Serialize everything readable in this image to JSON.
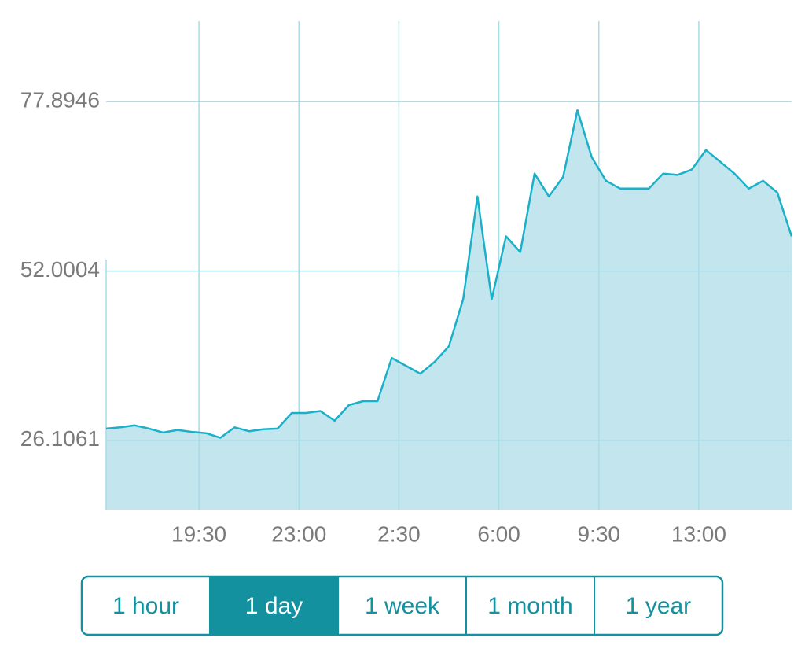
{
  "chart_data": {
    "type": "area",
    "x": [
      "16:15",
      "16:45",
      "17:15",
      "17:45",
      "18:15",
      "18:45",
      "19:15",
      "19:45",
      "20:15",
      "20:45",
      "21:15",
      "21:45",
      "22:15",
      "22:45",
      "23:15",
      "23:45",
      "0:15",
      "0:45",
      "1:15",
      "1:45",
      "2:15",
      "2:45",
      "3:15",
      "3:45",
      "4:15",
      "4:45",
      "5:15",
      "5:45",
      "6:15",
      "6:45",
      "7:15",
      "7:45",
      "8:15",
      "8:45",
      "9:15",
      "9:45",
      "10:15",
      "10:45",
      "11:15",
      "11:45",
      "12:15",
      "12:45",
      "13:15",
      "13:45",
      "14:15",
      "14:45",
      "15:15",
      "15:45",
      "16:15"
    ],
    "values": [
      27.9,
      28.1,
      28.4,
      27.9,
      27.3,
      27.7,
      27.4,
      27.2,
      26.5,
      28.1,
      27.5,
      27.8,
      27.9,
      30.3,
      30.3,
      30.6,
      29.1,
      31.5,
      32.1,
      32.1,
      38.7,
      37.5,
      36.3,
      38.1,
      40.5,
      47.7,
      63.4,
      47.7,
      57.3,
      54.9,
      66.9,
      63.4,
      66.4,
      76.6,
      69.4,
      65.8,
      64.6,
      64.6,
      64.6,
      66.9,
      66.7,
      67.5,
      70.5,
      68.7,
      66.9,
      64.6,
      65.8,
      64.0,
      57.3
    ],
    "color": "#1ab0c8",
    "fill": "#c3e6ee",
    "xlim": [
      "16:15",
      "16:15"
    ],
    "xticks": [
      "19:30",
      "23:00",
      "2:30",
      "6:00",
      "9:30",
      "13:00"
    ],
    "ylim": [
      15.5,
      90.2
    ],
    "yticks": [
      26.1061,
      52.0004,
      77.8946
    ],
    "grid": true
  },
  "controls": {
    "ranges": [
      "1 hour",
      "1 day",
      "1 week",
      "1 month",
      "1 year"
    ],
    "selected": 1
  }
}
